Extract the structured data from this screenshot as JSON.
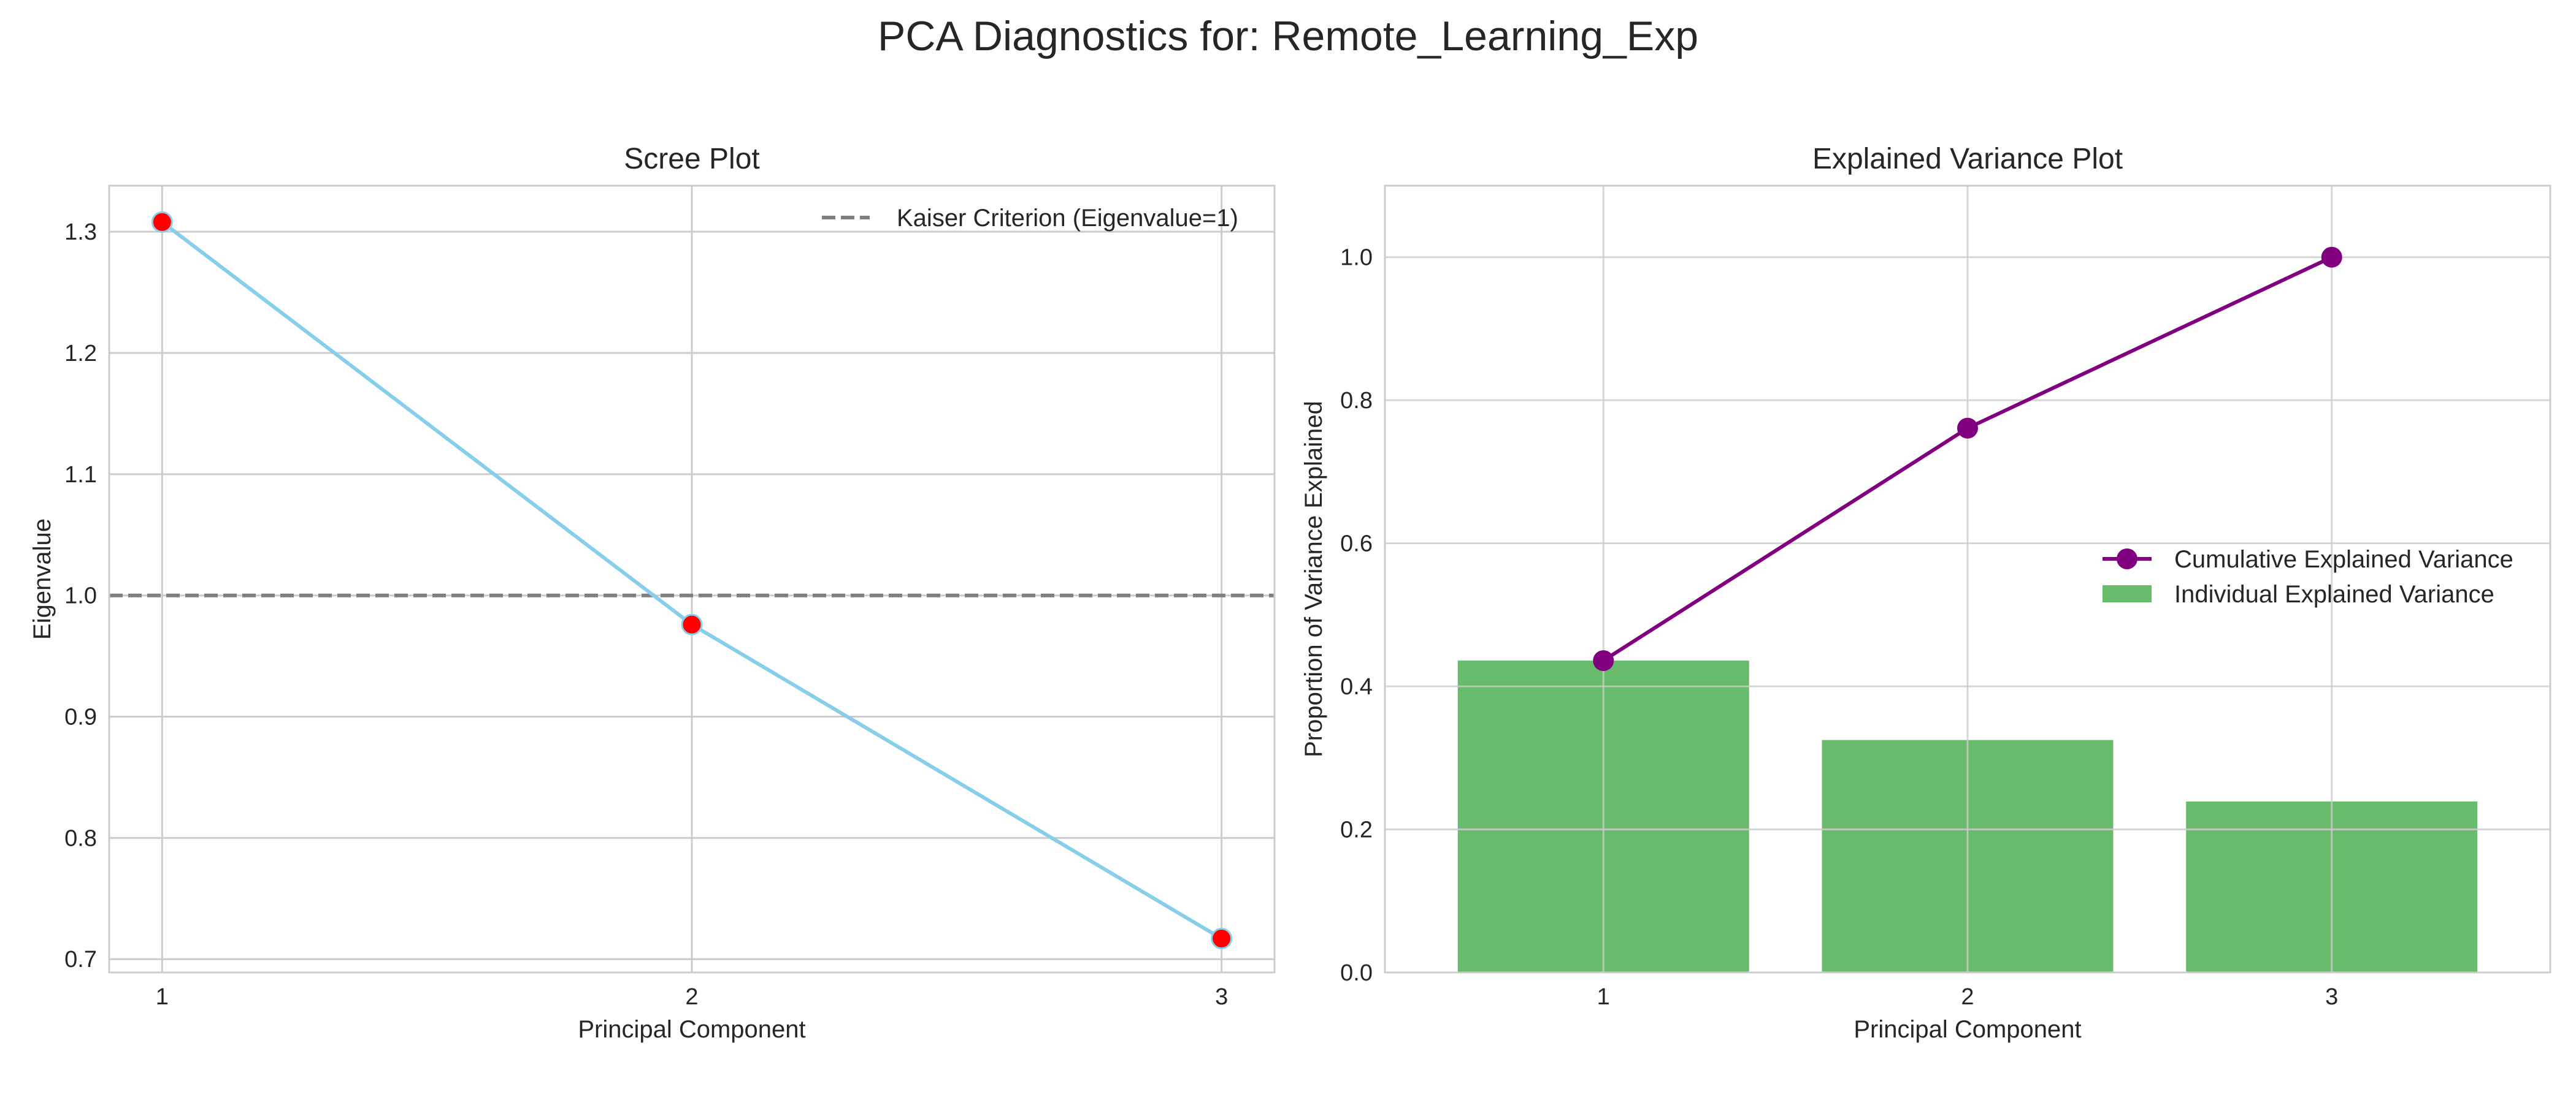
{
  "suptitle": "PCA Diagnostics for: Remote_Learning_Exp",
  "colors": {
    "scree_line": "#87ceeb",
    "scree_marker_face": "#ff0000",
    "scree_marker_edge": "#87ceeb",
    "kaiser_line": "#808080",
    "bar": "#4caf50",
    "cumulative": "#800080",
    "grid": "#cccccc"
  },
  "chart_data": [
    {
      "type": "line",
      "title": "Scree Plot",
      "xlabel": "Principal Component",
      "ylabel": "Eigenvalue",
      "x": [
        1,
        2,
        3
      ],
      "xticks": [
        "1",
        "2",
        "3"
      ],
      "xlim": [
        0.9,
        3.1
      ],
      "ylim": [
        0.689,
        1.338
      ],
      "yticks": [
        0.7,
        0.8,
        0.9,
        1.0,
        1.1,
        1.2,
        1.3
      ],
      "ytick_labels": [
        "0.7",
        "0.8",
        "0.9",
        "1.0",
        "1.1",
        "1.2",
        "1.3"
      ],
      "series": [
        {
          "values": [
            1.308,
            0.976,
            0.717
          ]
        }
      ],
      "reference_line": {
        "y": 1.0,
        "style": "dashed",
        "label": "Kaiser Criterion (Eigenvalue=1)"
      },
      "legend": {
        "placement": "upper-right",
        "entries": [
          "Kaiser Criterion (Eigenvalue=1)"
        ]
      },
      "grid": true
    },
    {
      "type": "bar",
      "title": "Explained Variance Plot",
      "xlabel": "Principal Component",
      "ylabel": "Proportion of Variance Explained",
      "categories": [
        "1",
        "2",
        "3"
      ],
      "ylim": [
        0,
        1.1
      ],
      "yticks": [
        0.0,
        0.2,
        0.4,
        0.6,
        0.8,
        1.0
      ],
      "ytick_labels": [
        "0.0",
        "0.2",
        "0.4",
        "0.6",
        "0.8",
        "1.0"
      ],
      "series": [
        {
          "name": "Individual Explained Variance",
          "type": "bar",
          "values": [
            0.436,
            0.325,
            0.239
          ]
        },
        {
          "name": "Cumulative Explained Variance",
          "type": "line",
          "values": [
            0.436,
            0.761,
            1.0
          ]
        }
      ],
      "legend": {
        "placement": "center-right",
        "entries": [
          "Cumulative Explained Variance",
          "Individual Explained Variance"
        ]
      },
      "grid": true
    }
  ]
}
